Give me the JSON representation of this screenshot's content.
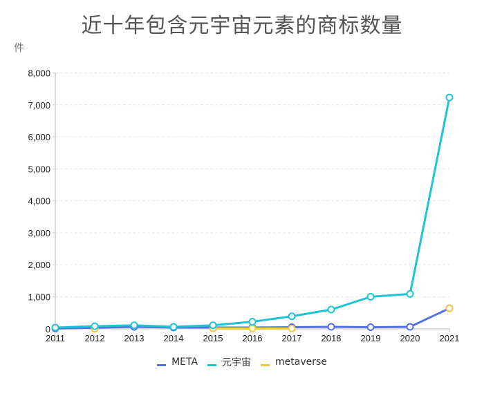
{
  "chart_data": {
    "type": "line",
    "title": "近十年包含元宇宙元素的商标数量",
    "ylabel": "件",
    "xlabel": "",
    "categories": [
      "2011",
      "2012",
      "2013",
      "2014",
      "2015",
      "2016",
      "2017",
      "2018",
      "2019",
      "2020",
      "2021"
    ],
    "yticks": [
      0,
      1000,
      2000,
      3000,
      4000,
      5000,
      6000,
      7000,
      8000
    ],
    "ytick_labels": [
      "0",
      "1,000",
      "2,000",
      "3,000",
      "4,000",
      "5,000",
      "6,000",
      "7,000",
      "8,000"
    ],
    "ylim": [
      0,
      8000
    ],
    "grid": "horizontal dashed",
    "legend_position": "bottom",
    "series": [
      {
        "name": "META",
        "color": "#5470e8",
        "values": [
          10,
          30,
          60,
          40,
          40,
          40,
          50,
          60,
          50,
          60,
          640
        ]
      },
      {
        "name": "元宇宙",
        "color": "#1ec4d4",
        "values": [
          40,
          80,
          110,
          60,
          110,
          220,
          390,
          600,
          1000,
          1090,
          7230
        ]
      },
      {
        "name": "metaverse",
        "color": "#f5c842",
        "values": [
          null,
          0,
          null,
          null,
          10,
          10,
          10,
          null,
          null,
          null,
          640
        ]
      }
    ]
  }
}
